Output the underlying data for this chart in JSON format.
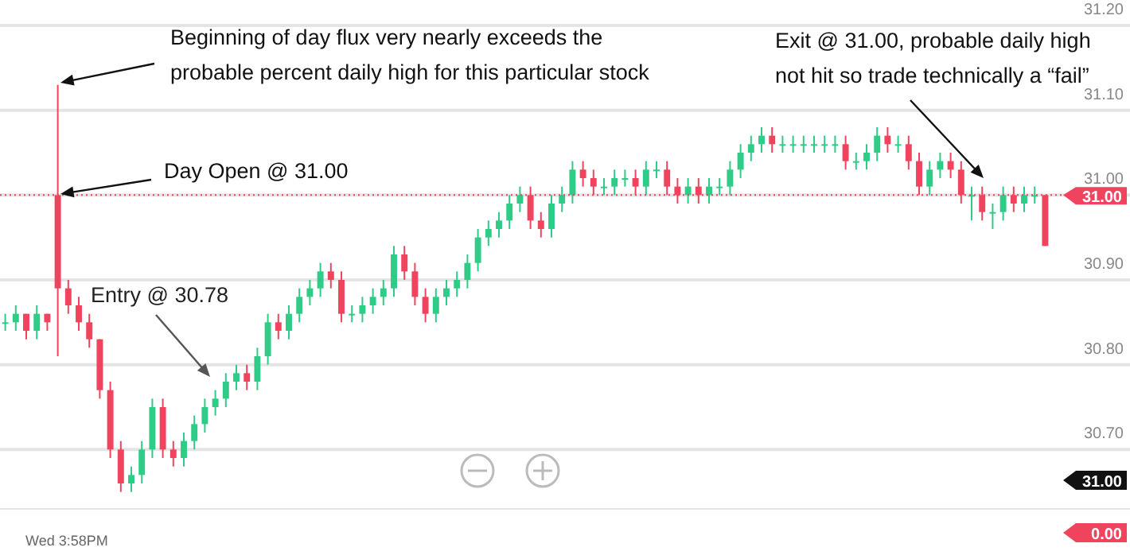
{
  "chart_data": {
    "type": "candlestick",
    "categories": [
      null,
      null,
      null,
      null,
      null,
      null,
      null,
      null,
      null,
      null,
      null,
      null,
      null,
      null,
      null,
      null,
      null,
      null,
      null,
      null,
      null,
      null,
      null,
      null,
      null,
      null,
      null,
      null,
      null,
      null,
      null,
      null,
      null,
      null,
      null,
      null,
      null,
      null,
      null,
      null,
      null,
      null,
      null,
      null,
      null,
      null,
      null,
      null,
      null,
      null,
      null,
      null,
      null,
      null,
      null,
      null,
      null,
      null,
      null,
      null,
      null,
      null,
      null,
      null,
      null,
      null,
      null,
      null,
      null,
      null,
      null,
      null,
      null,
      null,
      null,
      null,
      null,
      null,
      null,
      null,
      null,
      null,
      null,
      null,
      null,
      null,
      null,
      null,
      null,
      null,
      null,
      null,
      null,
      null,
      null,
      null,
      null,
      null,
      null,
      null
    ],
    "ohlc": [
      [
        30.85,
        30.86,
        30.84,
        30.85
      ],
      [
        30.85,
        30.87,
        30.84,
        30.86
      ],
      [
        30.86,
        30.86,
        30.83,
        30.84
      ],
      [
        30.84,
        30.87,
        30.83,
        30.86
      ],
      [
        30.86,
        30.86,
        30.84,
        30.85
      ],
      [
        31.0,
        31.13,
        30.81,
        30.89
      ],
      [
        30.89,
        30.9,
        30.86,
        30.87
      ],
      [
        30.87,
        30.88,
        30.84,
        30.85
      ],
      [
        30.85,
        30.86,
        30.82,
        30.83
      ],
      [
        30.83,
        30.83,
        30.76,
        30.77
      ],
      [
        30.77,
        30.78,
        30.69,
        30.7
      ],
      [
        30.7,
        30.71,
        30.65,
        30.66
      ],
      [
        30.66,
        30.68,
        30.65,
        30.67
      ],
      [
        30.67,
        30.71,
        30.66,
        30.7
      ],
      [
        30.7,
        30.76,
        30.69,
        30.75
      ],
      [
        30.75,
        30.76,
        30.69,
        30.7
      ],
      [
        30.7,
        30.71,
        30.68,
        30.69
      ],
      [
        30.69,
        30.72,
        30.68,
        30.71
      ],
      [
        30.71,
        30.74,
        30.7,
        30.73
      ],
      [
        30.73,
        30.76,
        30.72,
        30.75
      ],
      [
        30.75,
        30.77,
        30.74,
        30.76
      ],
      [
        30.76,
        30.79,
        30.75,
        30.78
      ],
      [
        30.78,
        30.8,
        30.77,
        30.79
      ],
      [
        30.79,
        30.8,
        30.77,
        30.78
      ],
      [
        30.78,
        30.82,
        30.77,
        30.81
      ],
      [
        30.81,
        30.86,
        30.8,
        30.85
      ],
      [
        30.85,
        30.86,
        30.83,
        30.84
      ],
      [
        30.84,
        30.87,
        30.83,
        30.86
      ],
      [
        30.86,
        30.89,
        30.85,
        30.88
      ],
      [
        30.88,
        30.9,
        30.87,
        30.89
      ],
      [
        30.89,
        30.92,
        30.88,
        30.91
      ],
      [
        30.91,
        30.92,
        30.89,
        30.9
      ],
      [
        30.9,
        30.91,
        30.85,
        30.86
      ],
      [
        30.86,
        30.87,
        30.85,
        30.86
      ],
      [
        30.86,
        30.88,
        30.85,
        30.87
      ],
      [
        30.87,
        30.89,
        30.86,
        30.88
      ],
      [
        30.88,
        30.9,
        30.87,
        30.89
      ],
      [
        30.89,
        30.94,
        30.88,
        30.93
      ],
      [
        30.93,
        30.94,
        30.9,
        30.91
      ],
      [
        30.91,
        30.92,
        30.87,
        30.88
      ],
      [
        30.88,
        30.89,
        30.85,
        30.86
      ],
      [
        30.86,
        30.89,
        30.85,
        30.88
      ],
      [
        30.88,
        30.9,
        30.87,
        30.89
      ],
      [
        30.89,
        30.91,
        30.88,
        30.9
      ],
      [
        30.9,
        30.93,
        30.89,
        30.92
      ],
      [
        30.92,
        30.96,
        30.91,
        30.95
      ],
      [
        30.95,
        30.97,
        30.94,
        30.96
      ],
      [
        30.96,
        30.98,
        30.95,
        30.97
      ],
      [
        30.97,
        31.0,
        30.96,
        30.99
      ],
      [
        30.99,
        31.01,
        30.98,
        31.0
      ],
      [
        31.0,
        31.01,
        30.96,
        30.97
      ],
      [
        30.97,
        30.98,
        30.95,
        30.96
      ],
      [
        30.96,
        31.0,
        30.95,
        30.99
      ],
      [
        30.99,
        31.01,
        30.98,
        31.0
      ],
      [
        31.0,
        31.04,
        30.99,
        31.03
      ],
      [
        31.03,
        31.04,
        31.01,
        31.02
      ],
      [
        31.02,
        31.03,
        31.0,
        31.01
      ],
      [
        31.01,
        31.02,
        31.0,
        31.01
      ],
      [
        31.01,
        31.03,
        31.0,
        31.02
      ],
      [
        31.02,
        31.03,
        31.01,
        31.02
      ],
      [
        31.02,
        31.03,
        31.0,
        31.01
      ],
      [
        31.01,
        31.04,
        31.0,
        31.03
      ],
      [
        31.03,
        31.04,
        31.02,
        31.03
      ],
      [
        31.03,
        31.04,
        31.0,
        31.01
      ],
      [
        31.01,
        31.02,
        30.99,
        31.0
      ],
      [
        31.0,
        31.02,
        30.99,
        31.01
      ],
      [
        31.01,
        31.02,
        30.99,
        31.0
      ],
      [
        31.0,
        31.02,
        30.99,
        31.01
      ],
      [
        31.01,
        31.02,
        31.0,
        31.01
      ],
      [
        31.01,
        31.04,
        31.0,
        31.03
      ],
      [
        31.03,
        31.06,
        31.02,
        31.05
      ],
      [
        31.05,
        31.07,
        31.04,
        31.06
      ],
      [
        31.06,
        31.08,
        31.05,
        31.07
      ],
      [
        31.07,
        31.08,
        31.05,
        31.06
      ],
      [
        31.06,
        31.07,
        31.05,
        31.06
      ],
      [
        31.06,
        31.07,
        31.05,
        31.06
      ],
      [
        31.06,
        31.07,
        31.05,
        31.06
      ],
      [
        31.06,
        31.07,
        31.05,
        31.06
      ],
      [
        31.06,
        31.07,
        31.05,
        31.06
      ],
      [
        31.06,
        31.07,
        31.05,
        31.06
      ],
      [
        31.06,
        31.07,
        31.03,
        31.04
      ],
      [
        31.04,
        31.05,
        31.03,
        31.04
      ],
      [
        31.04,
        31.06,
        31.03,
        31.05
      ],
      [
        31.05,
        31.08,
        31.04,
        31.07
      ],
      [
        31.07,
        31.08,
        31.05,
        31.06
      ],
      [
        31.06,
        31.07,
        31.05,
        31.06
      ],
      [
        31.06,
        31.07,
        31.03,
        31.04
      ],
      [
        31.04,
        31.05,
        31.0,
        31.01
      ],
      [
        31.01,
        31.04,
        31.0,
        31.03
      ],
      [
        31.03,
        31.05,
        31.02,
        31.04
      ],
      [
        31.04,
        31.05,
        31.02,
        31.03
      ],
      [
        31.03,
        31.04,
        30.99,
        31.0
      ],
      [
        31.0,
        31.01,
        30.97,
        31.0
      ],
      [
        31.0,
        31.01,
        30.97,
        30.98
      ],
      [
        30.98,
        30.99,
        30.96,
        30.98
      ],
      [
        30.98,
        31.01,
        30.97,
        31.0
      ],
      [
        31.0,
        31.01,
        30.98,
        30.99
      ],
      [
        30.99,
        31.01,
        30.98,
        31.0
      ],
      [
        31.0,
        31.01,
        30.99,
        31.0
      ],
      [
        31.0,
        31.0,
        30.94,
        30.94
      ]
    ],
    "colors": [
      "#2ecc87",
      "#2ecc87",
      "#f0435e",
      "#2ecc87",
      "#f0435e",
      "#f0435e",
      "#f0435e",
      "#f0435e",
      "#f0435e",
      "#f0435e",
      "#f0435e",
      "#f0435e",
      "#2ecc87",
      "#2ecc87",
      "#2ecc87",
      "#f0435e",
      "#f0435e",
      "#2ecc87",
      "#2ecc87",
      "#2ecc87",
      "#2ecc87",
      "#2ecc87",
      "#2ecc87",
      "#f0435e",
      "#2ecc87",
      "#2ecc87",
      "#f0435e",
      "#2ecc87",
      "#2ecc87",
      "#2ecc87",
      "#2ecc87",
      "#f0435e",
      "#f0435e",
      "#2ecc87",
      "#2ecc87",
      "#2ecc87",
      "#2ecc87",
      "#2ecc87",
      "#f0435e",
      "#f0435e",
      "#f0435e",
      "#2ecc87",
      "#2ecc87",
      "#2ecc87",
      "#2ecc87",
      "#2ecc87",
      "#2ecc87",
      "#2ecc87",
      "#2ecc87",
      "#2ecc87",
      "#f0435e",
      "#f0435e",
      "#2ecc87",
      "#2ecc87",
      "#2ecc87",
      "#f0435e",
      "#f0435e",
      "#2ecc87",
      "#2ecc87",
      "#2ecc87",
      "#f0435e",
      "#2ecc87",
      "#2ecc87",
      "#f0435e",
      "#f0435e",
      "#2ecc87",
      "#f0435e",
      "#2ecc87",
      "#2ecc87",
      "#2ecc87",
      "#2ecc87",
      "#2ecc87",
      "#2ecc87",
      "#f0435e",
      "#2ecc87",
      "#2ecc87",
      "#2ecc87",
      "#2ecc87",
      "#2ecc87",
      "#2ecc87",
      "#f0435e",
      "#2ecc87",
      "#2ecc87",
      "#2ecc87",
      "#f0435e",
      "#2ecc87",
      "#f0435e",
      "#f0435e",
      "#2ecc87",
      "#2ecc87",
      "#f0435e",
      "#f0435e",
      "#2ecc87",
      "#f0435e",
      "#2ecc87",
      "#2ecc87",
      "#f0435e",
      "#2ecc87",
      "#2ecc87",
      "#f0435e"
    ],
    "ylim": [
      30.63,
      31.23
    ],
    "yticks": [
      {
        "value": 30.7,
        "label": "30.70"
      },
      {
        "value": 30.8,
        "label": "30.80"
      },
      {
        "value": 30.9,
        "label": "30.90"
      },
      {
        "value": 31.0,
        "label": "31.00"
      },
      {
        "value": 31.1,
        "label": "31.10"
      },
      {
        "value": 31.2,
        "label": "31.20"
      }
    ],
    "grid": "y",
    "ref_lines": [
      {
        "axis": "y",
        "value": 31.0,
        "label": "31.00",
        "color": "#f0435e",
        "line_style": "dotted"
      }
    ],
    "annotations": [
      "Beginning of day flux very nearly exceeds the\nprobable percent daily high for this particular stock",
      "Day Open @ 31.00",
      "Entry @ 30.78",
      "Exit @ 31.00, probable daily high\nnot hit so trade technically a “fail”",
      "31.00",
      "0.00",
      "Wed 3:58PM"
    ]
  }
}
